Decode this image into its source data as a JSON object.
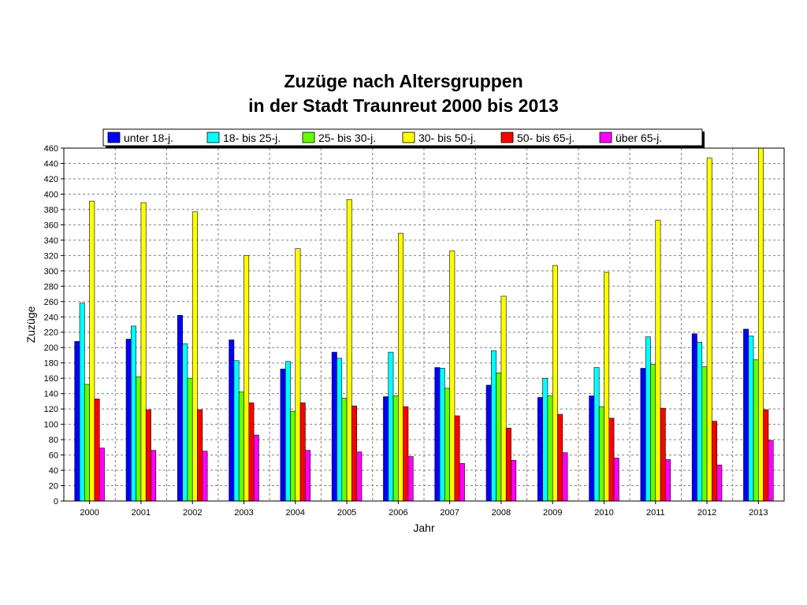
{
  "chart_data": {
    "type": "bar",
    "title_line1": "Zuzüge nach Altersgruppen",
    "title_line2": "in der Stadt Traunreut 2000 bis 2013",
    "xlabel": "Jahr",
    "ylabel": "Zuzüge",
    "ylim": [
      0,
      460
    ],
    "ytick_step": 20,
    "grid": true,
    "legend_position": "top",
    "categories": [
      "2000",
      "2001",
      "2002",
      "2003",
      "2004",
      "2005",
      "2006",
      "2007",
      "2008",
      "2009",
      "2010",
      "2011",
      "2012",
      "2013"
    ],
    "series": [
      {
        "name": "unter 18-j.",
        "color": "#0000ff",
        "values": [
          208,
          211,
          242,
          210,
          172,
          194,
          136,
          174,
          151,
          135,
          137,
          173,
          218,
          224
        ]
      },
      {
        "name": "18- bis 25-j.",
        "color": "#00ffff",
        "values": [
          258,
          228,
          205,
          183,
          182,
          186,
          194,
          173,
          196,
          160,
          174,
          214,
          207,
          215
        ]
      },
      {
        "name": "25- bis 30-j.",
        "color": "#66ff00",
        "values": [
          152,
          162,
          160,
          142,
          117,
          134,
          137,
          147,
          167,
          137,
          123,
          178,
          175,
          184
        ]
      },
      {
        "name": "30- bis 50-j.",
        "color": "#ffff00",
        "values": [
          391,
          389,
          377,
          320,
          329,
          393,
          349,
          326,
          267,
          307,
          298,
          366,
          447,
          460
        ]
      },
      {
        "name": "50- bis 65-j.",
        "color": "#ff0000",
        "values": [
          133,
          119,
          119,
          128,
          128,
          124,
          123,
          111,
          95,
          113,
          108,
          121,
          104,
          119
        ]
      },
      {
        "name": "über 65-j.",
        "color": "#ff00ff",
        "values": [
          69,
          66,
          65,
          86,
          66,
          64,
          58,
          49,
          53,
          63,
          56,
          54,
          47,
          79
        ]
      }
    ]
  }
}
